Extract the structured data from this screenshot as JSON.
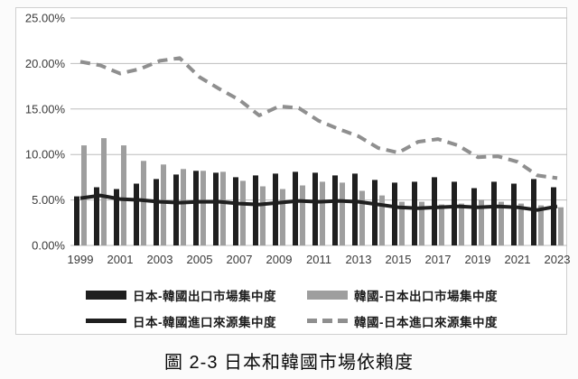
{
  "colors": {
    "dark": "#1f1f1f",
    "gray_bar": "#9e9e9e",
    "gray_line": "#8f8f8f",
    "gridline": "#bdbdbd",
    "frame_border": "#cfcfcf",
    "tick_text": "#3a3a3a"
  },
  "chart_data": {
    "type": "bar+line combo",
    "title": "圖 2-3 日本和韓國市場依賴度",
    "xlabel": "",
    "ylabel": "",
    "ylim": [
      0,
      25
    ],
    "grid": true,
    "legend_position": "bottom",
    "y_ticks": [
      "0.00%",
      "5.00%",
      "10.00%",
      "15.00%",
      "20.00%",
      "25.00%"
    ],
    "x": [
      1999,
      2000,
      2001,
      2002,
      2003,
      2004,
      2005,
      2006,
      2007,
      2008,
      2009,
      2010,
      2011,
      2012,
      2013,
      2014,
      2015,
      2016,
      2017,
      2018,
      2019,
      2020,
      2021,
      2022,
      2023
    ],
    "x_tick_labels": [
      "1999",
      "2001",
      "2003",
      "2005",
      "2007",
      "2009",
      "2011",
      "2013",
      "2015",
      "2017",
      "2019",
      "2021",
      "2023"
    ],
    "series": [
      {
        "name": "日本-韓國出口市場集中度",
        "type": "bar",
        "color_key": "dark",
        "values": [
          5.4,
          6.4,
          6.2,
          6.8,
          7.3,
          7.8,
          8.2,
          8.0,
          7.5,
          7.7,
          7.9,
          8.1,
          8.0,
          7.7,
          7.9,
          7.2,
          6.9,
          7.0,
          7.5,
          7.0,
          6.3,
          7.0,
          6.8,
          7.3,
          6.4
        ]
      },
      {
        "name": "韓國-日本出口市場集中度",
        "type": "bar",
        "color_key": "gray_bar",
        "values": [
          11.0,
          11.8,
          11.0,
          9.3,
          8.9,
          8.4,
          8.2,
          8.1,
          7.1,
          6.5,
          6.2,
          6.6,
          7.0,
          6.9,
          6.0,
          5.5,
          4.8,
          4.8,
          4.5,
          4.6,
          5.0,
          4.8,
          4.6,
          4.4,
          4.2
        ]
      },
      {
        "name": "日本-韓國進口來源集中度",
        "type": "line",
        "style": "solid",
        "color_key": "dark",
        "values": [
          5.2,
          5.5,
          5.1,
          5.0,
          4.8,
          4.7,
          4.8,
          4.8,
          4.6,
          4.5,
          4.7,
          4.9,
          4.8,
          4.9,
          4.8,
          4.5,
          4.2,
          4.1,
          4.2,
          4.3,
          4.2,
          4.3,
          4.2,
          3.9,
          4.3
        ]
      },
      {
        "name": "韓國-日本進口來源集中度",
        "type": "line",
        "style": "dashed",
        "color_key": "gray_line",
        "values": [
          20.2,
          19.8,
          18.9,
          19.4,
          20.3,
          20.6,
          18.5,
          17.2,
          16.0,
          14.3,
          15.3,
          15.1,
          13.7,
          12.8,
          12.0,
          10.7,
          10.2,
          11.4,
          11.7,
          11.0,
          9.7,
          9.8,
          9.2,
          7.7,
          7.4
        ]
      }
    ]
  }
}
